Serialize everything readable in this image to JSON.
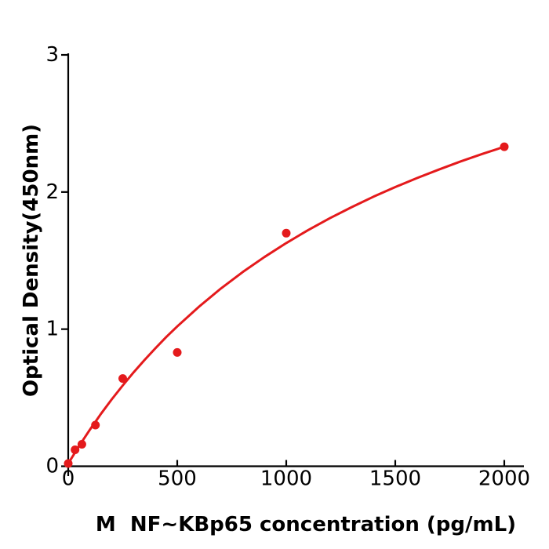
{
  "chart_data": {
    "type": "scatter",
    "title": "",
    "xlabel": "M  NF~KBp65 concentration (pg/mL)",
    "ylabel": "Optical Density(450nm)",
    "xlim": [
      0,
      2090
    ],
    "ylim": [
      0,
      3
    ],
    "x_ticks": [
      0,
      500,
      1000,
      1500,
      2000
    ],
    "y_ticks": [
      0,
      1,
      2,
      3
    ],
    "grid": false,
    "legend": "none",
    "colors": {
      "series": "#e41a1c",
      "axis": "#000000",
      "background": "#ffffff"
    },
    "series": [
      {
        "name": "standard-points",
        "kind": "scatter",
        "color": "#e41a1c",
        "points": [
          [
            0,
            0.02
          ],
          [
            31.25,
            0.12
          ],
          [
            62.5,
            0.16
          ],
          [
            125,
            0.3
          ],
          [
            250,
            0.64
          ],
          [
            500,
            0.83
          ],
          [
            1000,
            1.7
          ],
          [
            2000,
            2.33
          ]
        ]
      },
      {
        "name": "fitted-curve",
        "kind": "line",
        "color": "#e41a1c",
        "points": [
          [
            0,
            0.02
          ],
          [
            50,
            0.148
          ],
          [
            100,
            0.268
          ],
          [
            150,
            0.382
          ],
          [
            200,
            0.489
          ],
          [
            250,
            0.589
          ],
          [
            300,
            0.685
          ],
          [
            350,
            0.775
          ],
          [
            400,
            0.861
          ],
          [
            450,
            0.943
          ],
          [
            500,
            1.02
          ],
          [
            600,
            1.164
          ],
          [
            700,
            1.296
          ],
          [
            800,
            1.416
          ],
          [
            900,
            1.526
          ],
          [
            1000,
            1.628
          ],
          [
            1100,
            1.722
          ],
          [
            1200,
            1.809
          ],
          [
            1300,
            1.89
          ],
          [
            1400,
            1.966
          ],
          [
            1500,
            2.036
          ],
          [
            1600,
            2.102
          ],
          [
            1700,
            2.164
          ],
          [
            1800,
            2.223
          ],
          [
            1900,
            2.278
          ],
          [
            2000,
            2.33
          ]
        ]
      }
    ]
  }
}
